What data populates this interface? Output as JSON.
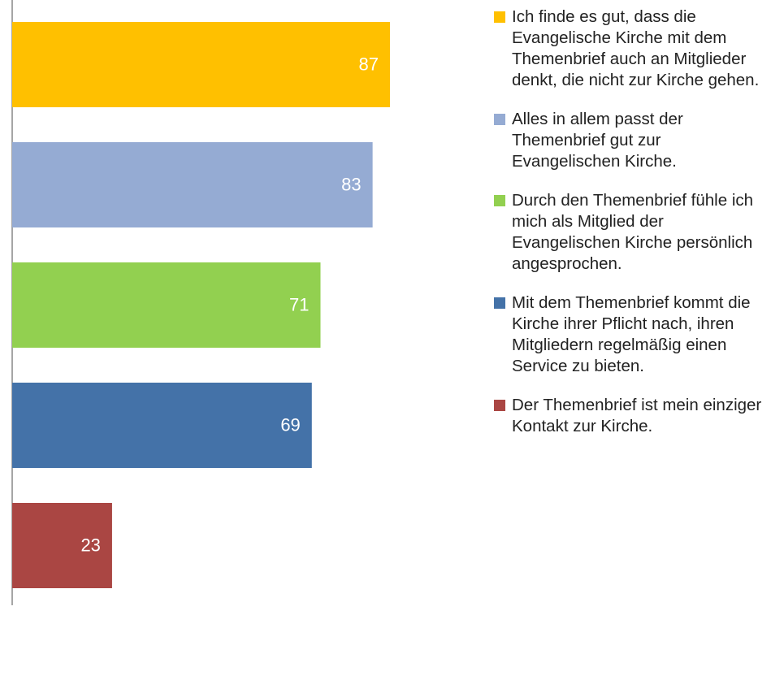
{
  "chart_data": {
    "type": "bar",
    "orientation": "horizontal",
    "categories": [
      "Ich finde es gut, dass die Evangelische Kirche mit dem Themenbrief auch an Mitglieder denkt, die nicht zur Kirche gehen.",
      "Alles in allem passt der Themenbrief gut zur Evangelischen Kirche.",
      "Durch den Themenbrief fühle ich mich als Mitglied der Evangelischen Kirche persönlich angesprochen.",
      "Mit dem Themenbrief kommt die Kirche ihrer Pflicht nach, ihren Mitgliedern regelmäßig einen Service zu bieten.",
      "Der Themenbrief ist mein einziger Kontakt zur Kirche."
    ],
    "values": [
      87,
      83,
      71,
      69,
      23
    ],
    "colors": [
      "#ffc000",
      "#95abd3",
      "#92d050",
      "#4472a8",
      "#aa4643"
    ]
  }
}
